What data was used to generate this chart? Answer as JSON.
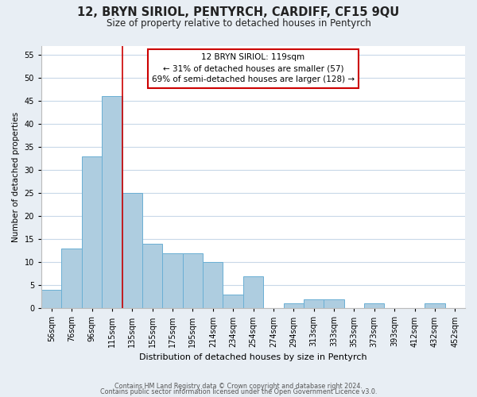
{
  "title": "12, BRYN SIRIOL, PENTYRCH, CARDIFF, CF15 9QU",
  "subtitle": "Size of property relative to detached houses in Pentyrch",
  "xlabel": "Distribution of detached houses by size in Pentyrch",
  "ylabel": "Number of detached properties",
  "bin_labels": [
    "56sqm",
    "76sqm",
    "96sqm",
    "115sqm",
    "135sqm",
    "155sqm",
    "175sqm",
    "195sqm",
    "214sqm",
    "234sqm",
    "254sqm",
    "274sqm",
    "294sqm",
    "313sqm",
    "333sqm",
    "353sqm",
    "373sqm",
    "393sqm",
    "412sqm",
    "432sqm",
    "452sqm"
  ],
  "bar_values": [
    4,
    13,
    33,
    46,
    25,
    14,
    12,
    12,
    10,
    3,
    7,
    0,
    1,
    2,
    2,
    0,
    1,
    0,
    0,
    1,
    0
  ],
  "bar_color": "#aecde0",
  "bar_edge_color": "#6aafd4",
  "property_line_bar_index": 4,
  "property_line_color": "#cc0000",
  "ylim": [
    0,
    57
  ],
  "yticks": [
    0,
    5,
    10,
    15,
    20,
    25,
    30,
    35,
    40,
    45,
    50,
    55
  ],
  "annotation_text_line1": "12 BRYN SIRIOL: 119sqm",
  "annotation_text_line2": "← 31% of detached houses are smaller (57)",
  "annotation_text_line3": "69% of semi-detached houses are larger (128) →",
  "footer_line1": "Contains HM Land Registry data © Crown copyright and database right 2024.",
  "footer_line2": "Contains public sector information licensed under the Open Government Licence v3.0.",
  "background_color": "#e8eef4",
  "plot_bg_color": "#ffffff",
  "grid_color": "#c8d8e8"
}
